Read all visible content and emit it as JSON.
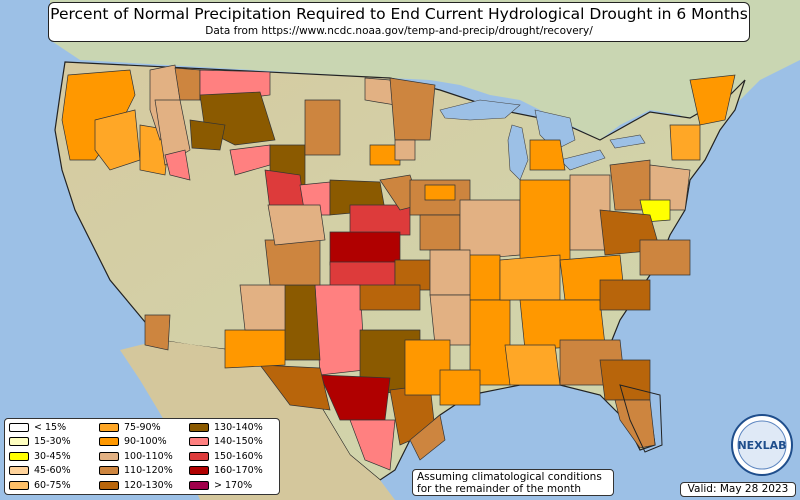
{
  "title": "Percent of Normal Precipitation Required to End Current Hydrological Drought in 6 Months",
  "subtitle": "Data from https://www.ncdc.noaa.gov/temp-and-precip/drought/recovery/",
  "legend": [
    {
      "label": "< 15%",
      "color": "#ffffff"
    },
    {
      "label": "15-30%",
      "color": "#ffffc0"
    },
    {
      "label": "30-45%",
      "color": "#ffff00"
    },
    {
      "label": "45-60%",
      "color": "#ffd39b"
    },
    {
      "label": "60-75%",
      "color": "#ffc068"
    },
    {
      "label": "75-90%",
      "color": "#ffa726"
    },
    {
      "label": "90-100%",
      "color": "#ff9800"
    },
    {
      "label": "100-110%",
      "color": "#e2b183"
    },
    {
      "label": "110-120%",
      "color": "#cd853f"
    },
    {
      "label": "120-130%",
      "color": "#b8650b"
    },
    {
      "label": "130-140%",
      "color": "#8b5a00"
    },
    {
      "label": "140-150%",
      "color": "#ff8080"
    },
    {
      "label": "150-160%",
      "color": "#dd3b3b"
    },
    {
      "label": "160-170%",
      "color": "#b00000"
    },
    {
      "label": "> 170%",
      "color": "#a0004a"
    }
  ],
  "assumption_note": "Assuming climatological conditions for the remainder of the month",
  "valid_date": "Valid: May 28 2023",
  "logo": {
    "text": "NEXLAB"
  },
  "colors": {
    "ocean": "#9cc0e6",
    "land": "#d9cfa6",
    "canada": "#c9d6b2",
    "border": "#222222"
  }
}
